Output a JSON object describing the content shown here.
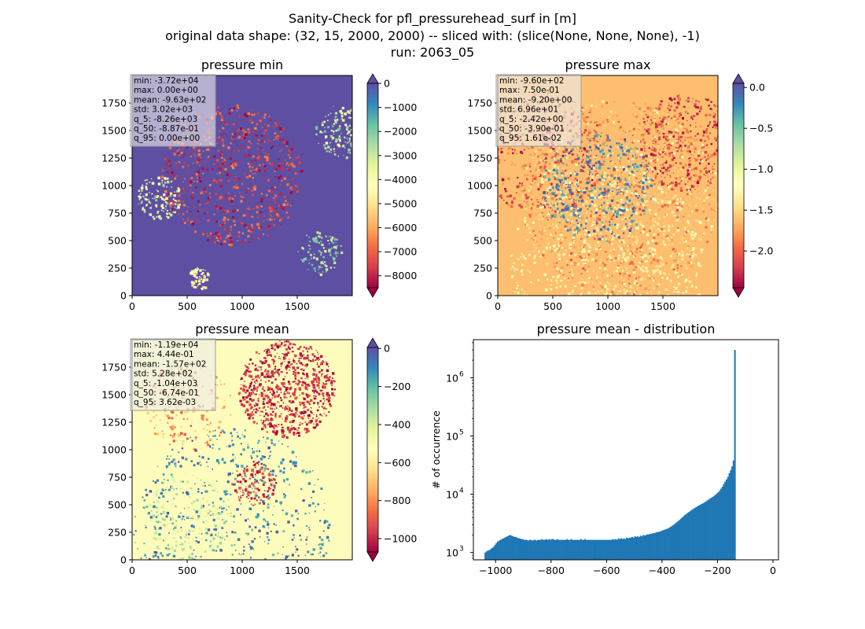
{
  "figure": {
    "title_lines": [
      "Sanity-Check for pfl_pressurehead_surf in [m]",
      "original data shape: (32, 15, 2000, 2000) -- sliced with: (slice(None, None, None), -1)",
      "run: 2063_05"
    ]
  },
  "colors": {
    "spectral": [
      "#9e0142",
      "#d53e4f",
      "#f46d43",
      "#fdae61",
      "#fee08b",
      "#ffffbf",
      "#e6f598",
      "#abdda4",
      "#66c2a5",
      "#3288bd",
      "#5e4fa2"
    ],
    "hist_bar": "#1f77b4",
    "stats_box_bg": "#ececec",
    "stats_box_border": "#999999"
  },
  "chart_data": [
    {
      "type": "heatmap",
      "title": "pressure min",
      "x_ticks": [
        "0",
        "500",
        "1000",
        "1500"
      ],
      "x_tick_values": [
        0,
        500,
        1000,
        1500
      ],
      "y_ticks": [
        "0",
        "250",
        "500",
        "750",
        "1000",
        "1250",
        "1500",
        "1750"
      ],
      "y_tick_values": [
        0,
        250,
        500,
        750,
        1000,
        1250,
        1500,
        1750
      ],
      "xlim": [
        0,
        2000
      ],
      "ylim": [
        0,
        2000
      ],
      "colormap": "Spectral",
      "colorbar": {
        "vmin": -8500,
        "vmax": 0,
        "ticks": [
          "0",
          "−1000",
          "−2000",
          "−3000",
          "−4000",
          "−5000",
          "−6000",
          "−7000",
          "−8000"
        ],
        "tick_values": [
          0,
          -1000,
          -2000,
          -3000,
          -4000,
          -5000,
          -6000,
          -7000,
          -8000
        ],
        "extend": "both"
      },
      "background_value": 0,
      "stats": [
        "min: -3.72e+04",
        "max: 0.00e+00",
        "mean: -9.63e+02",
        "std: 3.02e+03",
        "q_5: -8.26e+03",
        "q_50: -8.87e-01",
        "q_95: 0.00e+00"
      ]
    },
    {
      "type": "heatmap",
      "title": "pressure max",
      "x_ticks": [
        "0",
        "500",
        "1000",
        "1500"
      ],
      "x_tick_values": [
        0,
        500,
        1000,
        1500
      ],
      "y_ticks": [
        "0",
        "250",
        "500",
        "750",
        "1000",
        "1250",
        "1500",
        "1750"
      ],
      "y_tick_values": [
        0,
        250,
        500,
        750,
        1000,
        1250,
        1500,
        1750
      ],
      "xlim": [
        0,
        2000
      ],
      "ylim": [
        0,
        2000
      ],
      "colormap": "Spectral",
      "colorbar": {
        "vmin": -2.45,
        "vmax": 0.05,
        "ticks": [
          "0.0",
          "−0.5",
          "−1.0",
          "−1.5",
          "−2.0"
        ],
        "tick_values": [
          0,
          -0.5,
          -1.0,
          -1.5,
          -2.0
        ],
        "extend": "both"
      },
      "background_value": -0.1,
      "stats": [
        "min: -9.60e+02",
        "max: 7.50e-01",
        "mean: -9.20e+00",
        "std: 6.96e+01",
        "q_5: -2.42e+00",
        "q_50: -3.90e-01",
        "q_95: 1.61e-02"
      ]
    },
    {
      "type": "heatmap",
      "title": "pressure mean",
      "x_ticks": [
        "0",
        "500",
        "1000",
        "1500"
      ],
      "x_tick_values": [
        0,
        500,
        1000,
        1500
      ],
      "y_ticks": [
        "0",
        "250",
        "500",
        "750",
        "1000",
        "1250",
        "1500",
        "1750"
      ],
      "y_tick_values": [
        0,
        250,
        500,
        750,
        1000,
        1250,
        1500,
        1750
      ],
      "xlim": [
        0,
        2000
      ],
      "ylim": [
        0,
        2000
      ],
      "colormap": "Spectral",
      "colorbar": {
        "vmin": -1070,
        "vmax": 5,
        "ticks": [
          "0",
          "−200",
          "−400",
          "−600",
          "−800",
          "−1000"
        ],
        "tick_values": [
          0,
          -200,
          -400,
          -600,
          -800,
          -1000
        ],
        "extend": "both"
      },
      "background_value": -5,
      "stats": [
        "min: -1.19e+04",
        "max: 4.44e-01",
        "mean: -1.57e+02",
        "std: 5.28e+02",
        "q_5: -1.04e+03",
        "q_50: -6.74e-01",
        "q_95: 3.62e-03"
      ]
    },
    {
      "type": "bar",
      "title": "pressure mean - distribution",
      "xlabel": "",
      "ylabel": "# of occurrence",
      "yscale": "log",
      "xlim": [
        -1080,
        20
      ],
      "ylim": [
        750,
        4500000
      ],
      "x_ticks": [
        "−1000",
        "−800",
        "−600",
        "−400",
        "−200",
        "0"
      ],
      "x_tick_values": [
        -1000,
        -800,
        -600,
        -400,
        -200,
        0
      ],
      "y_ticks": [
        "10",
        "10",
        "10",
        "10"
      ],
      "y_tick_exponents": [
        "3",
        "4",
        "5",
        "6"
      ],
      "y_tick_values": [
        1000,
        10000,
        100000,
        1000000
      ],
      "bin_edges_start": -1040,
      "bin_width": 5,
      "counts": [
        1000,
        1050,
        1080,
        1100,
        1150,
        1200,
        1250,
        1350,
        1450,
        1550,
        1600,
        1650,
        1700,
        1750,
        1800,
        1850,
        1900,
        1950,
        2000,
        1950,
        1900,
        1850,
        1850,
        1800,
        1750,
        1750,
        1700,
        1700,
        1650,
        1650,
        1650,
        1600,
        1650,
        1650,
        1600,
        1650,
        1650,
        1600,
        1650,
        1650,
        1650,
        1700,
        1650,
        1650,
        1700,
        1650,
        1700,
        1650,
        1700,
        1700,
        1650,
        1650,
        1700,
        1650,
        1650,
        1650,
        1650,
        1650,
        1650,
        1700,
        1650,
        1650,
        1700,
        1650,
        1650,
        1650,
        1650,
        1650,
        1650,
        1700,
        1650,
        1650,
        1700,
        1650,
        1650,
        1650,
        1650,
        1650,
        1650,
        1650,
        1650,
        1650,
        1650,
        1650,
        1650,
        1650,
        1650,
        1650,
        1650,
        1650,
        1650,
        1650,
        1700,
        1650,
        1700,
        1650,
        1750,
        1700,
        1750,
        1700,
        1750,
        1700,
        1800,
        1750,
        1800,
        1800,
        1850,
        1800,
        1900,
        1850,
        1900,
        1850,
        1950,
        1900,
        2000,
        1950,
        2000,
        2050,
        2050,
        2100,
        2100,
        2150,
        2150,
        2200,
        2250,
        2250,
        2300,
        2350,
        2400,
        2450,
        2500,
        2550,
        2600,
        2700,
        2800,
        2900,
        3000,
        3150,
        3300,
        3450,
        3600,
        3800,
        4000,
        4200,
        4400,
        4600,
        4800,
        5000,
        5200,
        5400,
        5600,
        5800,
        6000,
        6200,
        6400,
        6600,
        6800,
        7000,
        7200,
        7500,
        7800,
        8100,
        8400,
        8700,
        9000,
        9400,
        9800,
        10300,
        10800,
        11500,
        12500,
        13500,
        15000,
        16500,
        18000,
        20000,
        23000,
        26000,
        30000,
        38000,
        3000000
      ]
    }
  ]
}
